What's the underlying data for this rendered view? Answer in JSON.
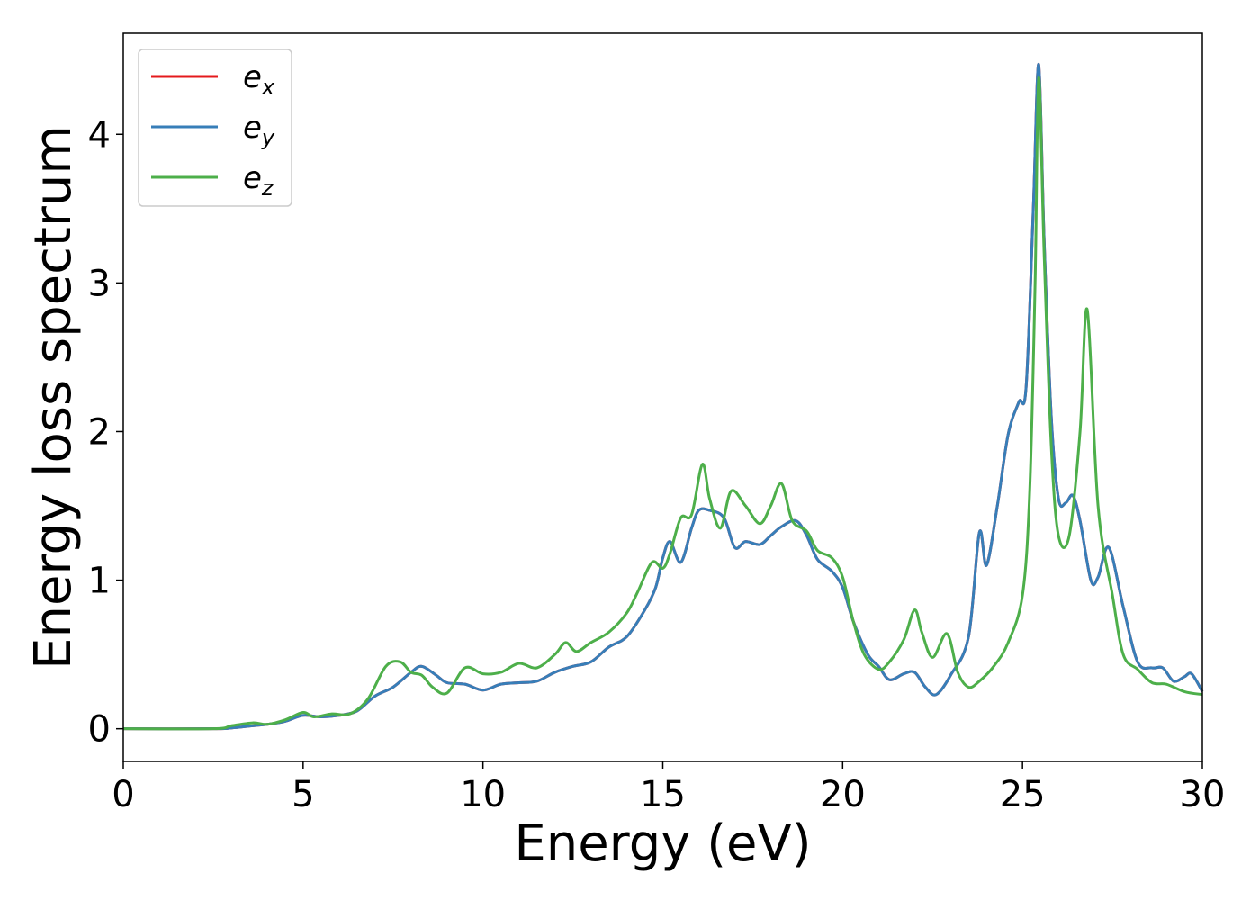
{
  "chart_data": {
    "type": "line",
    "xlabel": "Energy (eV)",
    "ylabel": "Energy loss spectrum",
    "xlim": [
      0,
      30
    ],
    "ylim": [
      -0.22,
      4.68
    ],
    "xticks": [
      0,
      5,
      10,
      15,
      20,
      25,
      30
    ],
    "yticks": [
      0,
      1,
      2,
      3,
      4
    ],
    "grid": false,
    "legend_position": "top-left",
    "series": [
      {
        "name": "e_x",
        "label_base": "e",
        "label_sub": "x",
        "color": "#e41a1c",
        "x": [
          0,
          2.5,
          3,
          3.6,
          4,
          4.5,
          5,
          5.5,
          6,
          6.5,
          7,
          7.5,
          8,
          8.3,
          8.7,
          9,
          9.5,
          10,
          10.5,
          11,
          11.5,
          12,
          12.5,
          13,
          13.5,
          14,
          14.5,
          14.8,
          15,
          15.2,
          15.5,
          15.8,
          16,
          16.3,
          16.7,
          17,
          17.3,
          17.7,
          18,
          18.3,
          18.7,
          19,
          19.3,
          19.7,
          20,
          20.3,
          20.7,
          21,
          21.3,
          21.7,
          22,
          22.3,
          22.6,
          23,
          23.5,
          23.8,
          24,
          24.3,
          24.6,
          24.9,
          25.1,
          25.3,
          25.45,
          25.6,
          25.8,
          26,
          26.2,
          26.4,
          26.6,
          26.9,
          27.1,
          27.4,
          27.8,
          28.2,
          28.6,
          28.9,
          29.2,
          29.5,
          29.7,
          30
        ],
        "y": [
          0,
          0,
          0.005,
          0.02,
          0.03,
          0.05,
          0.09,
          0.08,
          0.09,
          0.12,
          0.22,
          0.28,
          0.38,
          0.42,
          0.36,
          0.31,
          0.3,
          0.26,
          0.3,
          0.31,
          0.32,
          0.38,
          0.42,
          0.45,
          0.55,
          0.62,
          0.8,
          0.95,
          1.15,
          1.26,
          1.12,
          1.35,
          1.47,
          1.47,
          1.42,
          1.22,
          1.26,
          1.24,
          1.3,
          1.36,
          1.4,
          1.3,
          1.14,
          1.06,
          0.95,
          0.72,
          0.5,
          0.42,
          0.33,
          0.37,
          0.38,
          0.28,
          0.23,
          0.36,
          0.62,
          1.32,
          1.1,
          1.5,
          1.98,
          2.2,
          2.3,
          3.5,
          4.47,
          3.3,
          2.1,
          1.55,
          1.52,
          1.57,
          1.4,
          1.0,
          1.02,
          1.22,
          0.82,
          0.45,
          0.41,
          0.41,
          0.32,
          0.35,
          0.37,
          0.25
        ]
      },
      {
        "name": "e_y",
        "label_base": "e",
        "label_sub": "y",
        "color": "#377eb8",
        "x": [
          0,
          2.5,
          3,
          3.6,
          4,
          4.5,
          5,
          5.5,
          6,
          6.5,
          7,
          7.5,
          8,
          8.3,
          8.7,
          9,
          9.5,
          10,
          10.5,
          11,
          11.5,
          12,
          12.5,
          13,
          13.5,
          14,
          14.5,
          14.8,
          15,
          15.2,
          15.5,
          15.8,
          16,
          16.3,
          16.7,
          17,
          17.3,
          17.7,
          18,
          18.3,
          18.7,
          19,
          19.3,
          19.7,
          20,
          20.3,
          20.7,
          21,
          21.3,
          21.7,
          22,
          22.3,
          22.6,
          23,
          23.5,
          23.8,
          24,
          24.3,
          24.6,
          24.9,
          25.1,
          25.3,
          25.45,
          25.6,
          25.8,
          26,
          26.2,
          26.4,
          26.6,
          26.9,
          27.1,
          27.4,
          27.8,
          28.2,
          28.6,
          28.9,
          29.2,
          29.5,
          29.7,
          30
        ],
        "y": [
          0,
          0,
          0.005,
          0.02,
          0.03,
          0.05,
          0.09,
          0.08,
          0.09,
          0.12,
          0.22,
          0.28,
          0.38,
          0.42,
          0.36,
          0.31,
          0.3,
          0.26,
          0.3,
          0.31,
          0.32,
          0.38,
          0.42,
          0.45,
          0.55,
          0.62,
          0.8,
          0.95,
          1.15,
          1.26,
          1.12,
          1.35,
          1.47,
          1.47,
          1.42,
          1.22,
          1.26,
          1.24,
          1.3,
          1.36,
          1.4,
          1.3,
          1.14,
          1.06,
          0.95,
          0.72,
          0.5,
          0.42,
          0.33,
          0.37,
          0.38,
          0.28,
          0.23,
          0.36,
          0.62,
          1.32,
          1.1,
          1.5,
          1.98,
          2.2,
          2.3,
          3.5,
          4.47,
          3.3,
          2.1,
          1.55,
          1.52,
          1.57,
          1.4,
          1.0,
          1.02,
          1.22,
          0.82,
          0.45,
          0.41,
          0.41,
          0.32,
          0.35,
          0.37,
          0.25
        ]
      },
      {
        "name": "e_z",
        "label_base": "e",
        "label_sub": "z",
        "color": "#4daf4a",
        "x": [
          0,
          2.5,
          3,
          3.6,
          4,
          4.5,
          5,
          5.3,
          5.8,
          6.3,
          6.8,
          7.3,
          7.7,
          8,
          8.3,
          8.6,
          9,
          9.5,
          10,
          10.5,
          11,
          11.5,
          12,
          12.3,
          12.6,
          13,
          13.5,
          14,
          14.3,
          14.7,
          15,
          15.2,
          15.5,
          15.8,
          16.1,
          16.3,
          16.6,
          16.9,
          17.3,
          17.7,
          18,
          18.3,
          18.6,
          19,
          19.3,
          19.7,
          20,
          20.3,
          20.6,
          21,
          21.3,
          21.7,
          22,
          22.2,
          22.5,
          22.9,
          23.2,
          23.5,
          23.8,
          24.2,
          24.6,
          25,
          25.2,
          25.35,
          25.45,
          25.6,
          25.8,
          26,
          26.3,
          26.6,
          26.8,
          27.1,
          27.5,
          27.8,
          28.2,
          28.6,
          29,
          29.5,
          30
        ],
        "y": [
          0,
          0,
          0.02,
          0.04,
          0.03,
          0.06,
          0.11,
          0.08,
          0.1,
          0.1,
          0.2,
          0.42,
          0.45,
          0.38,
          0.36,
          0.28,
          0.24,
          0.41,
          0.37,
          0.38,
          0.44,
          0.41,
          0.5,
          0.58,
          0.52,
          0.58,
          0.65,
          0.78,
          0.92,
          1.12,
          1.08,
          1.18,
          1.42,
          1.44,
          1.78,
          1.55,
          1.35,
          1.6,
          1.5,
          1.38,
          1.5,
          1.65,
          1.4,
          1.33,
          1.2,
          1.15,
          1.02,
          0.72,
          0.5,
          0.4,
          0.45,
          0.6,
          0.8,
          0.65,
          0.48,
          0.64,
          0.38,
          0.28,
          0.32,
          0.42,
          0.58,
          0.9,
          1.6,
          3.0,
          4.38,
          3.2,
          1.9,
          1.3,
          1.3,
          2.0,
          2.82,
          1.5,
          0.9,
          0.5,
          0.4,
          0.31,
          0.3,
          0.25,
          0.23
        ]
      }
    ]
  }
}
